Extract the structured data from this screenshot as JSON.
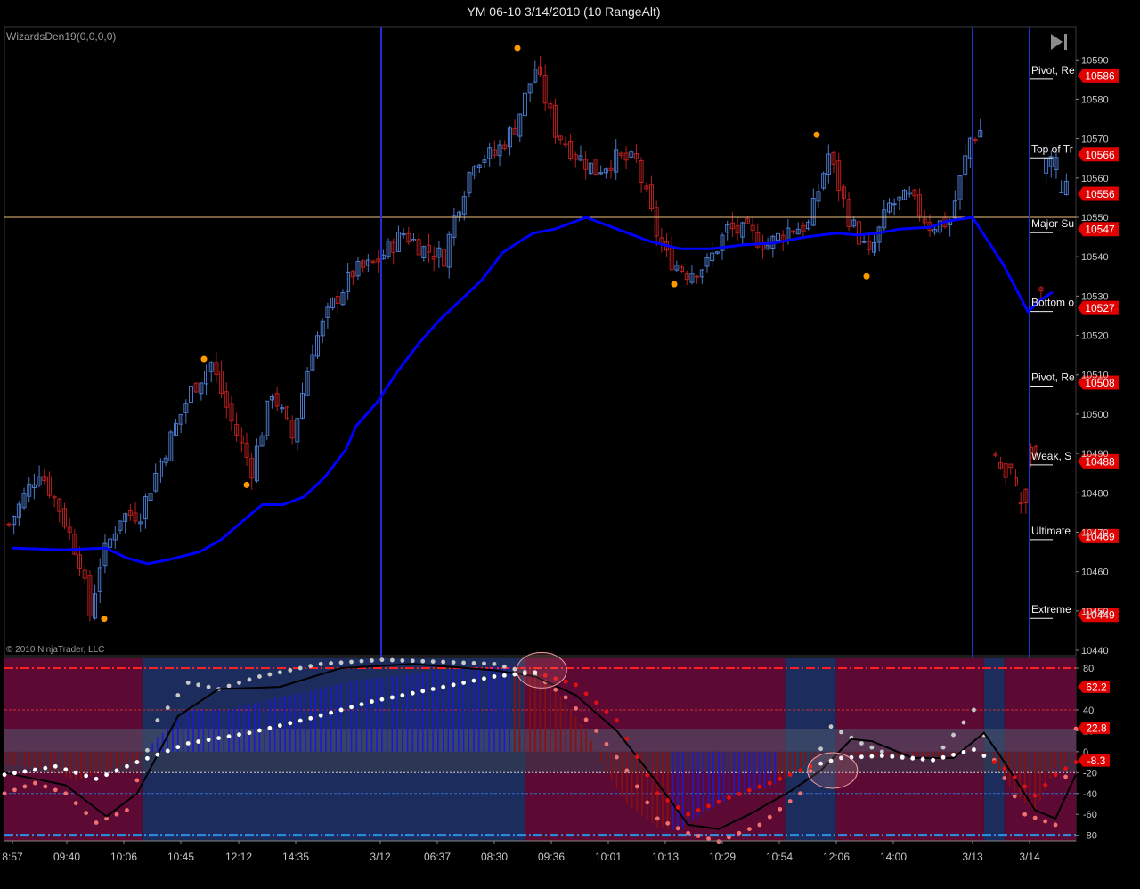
{
  "window": {
    "title": "YM 06-10  3/14/2010 (10 RangeAlt)",
    "indicator_label": "WizardsDen19(0,0,0,0)",
    "copyright": "© 2010 NinjaTrader, LLC"
  },
  "colors": {
    "background": "#000000",
    "up_candle": "#4a78c8",
    "down_candle": "#b81e1e",
    "moving_average": "#0000ff",
    "session_line": "#2030d0",
    "major_line": "#f0c080",
    "level_tag": "#e00000",
    "marker": "#ff9900",
    "osc_bull_zone": "#1c2c5c",
    "osc_bear_zone": "#5c0a34",
    "osc_neutral_band": "#505a6e"
  },
  "chart_data": [
    {
      "type": "candlestick",
      "name": "price",
      "y_ticks": [
        10590,
        10580,
        10570,
        10560,
        10550,
        10540,
        10530,
        10520,
        10510,
        10500,
        10490,
        10480,
        10470,
        10460,
        10450,
        10440
      ],
      "ylim": [
        10440,
        10593
      ],
      "x_ticks": [
        "8:57",
        "09:40",
        "10:06",
        "10:45",
        "12:12",
        "14:35",
        "3/12",
        "06:37",
        "08:30",
        "09:36",
        "10:01",
        "10:13",
        "10:29",
        "10:54",
        "12:06",
        "14:00",
        "3/13",
        "3/14"
      ],
      "levels": [
        {
          "label": "Pivot, Re",
          "value": 10586
        },
        {
          "label": "Top of Tr",
          "value": 10566
        },
        {
          "label": "",
          "value": 10556
        },
        {
          "label": "Major Su",
          "value": 10547
        },
        {
          "label": "Bottom o",
          "value": 10527
        },
        {
          "label": "Pivot, Re",
          "value": 10508
        },
        {
          "label": "Weak, S",
          "value": 10488
        },
        {
          "label": "Ultimate",
          "value": 10469
        },
        {
          "label": "Extreme",
          "value": 10449
        }
      ],
      "major_line_value": 10550,
      "moving_average": [
        [
          0,
          10466
        ],
        [
          10,
          10465.5
        ],
        [
          18,
          10466
        ],
        [
          22,
          10463.5
        ],
        [
          26,
          10462
        ],
        [
          30,
          10463
        ],
        [
          36,
          10465
        ],
        [
          40,
          10468
        ],
        [
          44,
          10472.5
        ],
        [
          48,
          10477
        ],
        [
          52,
          10477
        ],
        [
          56,
          10479
        ],
        [
          60,
          10484
        ],
        [
          64,
          10491
        ],
        [
          66,
          10497
        ],
        [
          70,
          10503
        ],
        [
          74,
          10511
        ],
        [
          78,
          10518
        ],
        [
          82,
          10524
        ],
        [
          86,
          10529
        ],
        [
          90,
          10534
        ],
        [
          94,
          10541
        ],
        [
          98,
          10544.5
        ],
        [
          100,
          10546
        ],
        [
          104,
          10547
        ],
        [
          110,
          10550
        ],
        [
          114,
          10548
        ],
        [
          118,
          10546
        ],
        [
          122,
          10544
        ],
        [
          128,
          10542
        ],
        [
          134,
          10542
        ],
        [
          140,
          10543
        ],
        [
          146,
          10543.5
        ],
        [
          152,
          10545
        ],
        [
          158,
          10546
        ],
        [
          162,
          10545.5
        ],
        [
          166,
          10546
        ],
        [
          170,
          10547
        ],
        [
          176,
          10547.5
        ],
        [
          179,
          10549
        ],
        [
          184,
          10550
        ]
      ],
      "moving_average_after_gap": [
        [
          0,
          10550
        ],
        [
          5,
          10538
        ],
        [
          9,
          10526
        ],
        [
          11,
          10529
        ],
        [
          13,
          10531
        ]
      ],
      "swing_markers": [
        {
          "bar": 0,
          "value": 10448
        },
        {
          "bar": 40,
          "value": 10514
        },
        {
          "bar": 48,
          "value": 10482
        },
        {
          "bar": 104,
          "value": 10593
        },
        {
          "bar": 134,
          "value": 10533
        },
        {
          "bar": 162,
          "value": 10571
        },
        {
          "bar": 171,
          "value": 10535
        }
      ],
      "sessions": [
        {
          "start_value": 10470,
          "ohlc_key": [
            [
              10470,
              10478,
              10466,
              10474
            ],
            [
              10474,
              10478,
              10468,
              10470
            ]
          ]
        }
      ]
    },
    {
      "type": "oscillator",
      "name": "WizardsDen19",
      "ylim": [
        -82,
        86
      ],
      "y_ticks": [
        80,
        60,
        40,
        20,
        0,
        -20,
        -40,
        -60,
        -80
      ],
      "value_tags": [
        62.2,
        22.8,
        -8.3
      ],
      "overbought": 80,
      "oversold": -80,
      "zones": [
        {
          "from_bar": 0,
          "to_bar": 27,
          "state": "bear"
        },
        {
          "from_bar": 27,
          "to_bar": 102,
          "state": "bull"
        },
        {
          "from_bar": 102,
          "to_bar": 153,
          "state": "bear"
        },
        {
          "from_bar": 153,
          "to_bar": 163,
          "state": "bull"
        },
        {
          "from_bar": 163,
          "to_bar": 192,
          "state": "bear"
        },
        {
          "from_bar": 192,
          "to_bar": 196,
          "state": "bull"
        },
        {
          "from_bar": 196,
          "to_bar": 210,
          "state": "bear"
        }
      ],
      "histogram_keys": [
        [
          0,
          -12
        ],
        [
          8,
          -16
        ],
        [
          14,
          -28
        ],
        [
          20,
          -18
        ],
        [
          26,
          -8
        ],
        [
          30,
          14
        ],
        [
          36,
          40
        ],
        [
          44,
          40
        ],
        [
          52,
          50
        ],
        [
          60,
          58
        ],
        [
          68,
          68
        ],
        [
          76,
          72
        ],
        [
          84,
          78
        ],
        [
          92,
          80
        ],
        [
          100,
          82
        ],
        [
          104,
          78
        ],
        [
          108,
          60
        ],
        [
          114,
          20
        ],
        [
          118,
          -20
        ],
        [
          122,
          -50
        ],
        [
          128,
          -72
        ],
        [
          132,
          -76
        ],
        [
          138,
          -56
        ],
        [
          144,
          -40
        ],
        [
          150,
          -34
        ],
        [
          156,
          -16
        ],
        [
          160,
          -4
        ],
        [
          164,
          0
        ],
        [
          168,
          -6
        ],
        [
          176,
          -4
        ],
        [
          184,
          -8
        ],
        [
          190,
          4
        ],
        [
          194,
          -10
        ],
        [
          198,
          -40
        ],
        [
          202,
          -58
        ],
        [
          206,
          -16
        ],
        [
          210,
          -8
        ]
      ],
      "white_dot_line": [
        [
          0,
          -22
        ],
        [
          10,
          -14
        ],
        [
          18,
          -26
        ],
        [
          26,
          -10
        ],
        [
          36,
          8
        ],
        [
          48,
          18
        ],
        [
          60,
          32
        ],
        [
          72,
          48
        ],
        [
          84,
          60
        ],
        [
          96,
          72
        ],
        [
          104,
          76
        ],
        [
          112,
          64
        ],
        [
          120,
          30
        ],
        [
          128,
          -40
        ],
        [
          134,
          -60
        ],
        [
          142,
          -44
        ],
        [
          150,
          -30
        ],
        [
          158,
          -14
        ],
        [
          164,
          -6
        ],
        [
          172,
          -4
        ],
        [
          182,
          -8
        ],
        [
          190,
          2
        ],
        [
          196,
          -16
        ],
        [
          202,
          -42
        ],
        [
          206,
          -22
        ],
        [
          210,
          -10
        ]
      ],
      "black_line": [
        [
          0,
          -20
        ],
        [
          6,
          -26
        ],
        [
          12,
          -32
        ],
        [
          20,
          -62
        ],
        [
          26,
          -40
        ],
        [
          34,
          34
        ],
        [
          42,
          60
        ],
        [
          54,
          62
        ],
        [
          66,
          80
        ],
        [
          80,
          84
        ],
        [
          96,
          78
        ],
        [
          104,
          72
        ],
        [
          112,
          54
        ],
        [
          120,
          20
        ],
        [
          128,
          -30
        ],
        [
          134,
          -70
        ],
        [
          140,
          -74
        ],
        [
          146,
          -60
        ],
        [
          154,
          -38
        ],
        [
          160,
          -18
        ],
        [
          166,
          12
        ],
        [
          170,
          10
        ],
        [
          178,
          -6
        ],
        [
          186,
          -6
        ],
        [
          192,
          18
        ],
        [
          196,
          -10
        ],
        [
          202,
          -56
        ],
        [
          206,
          -64
        ],
        [
          210,
          -22
        ]
      ],
      "gray_dot_line": [
        [
          0,
          -40
        ],
        [
          6,
          -30
        ],
        [
          12,
          -40
        ],
        [
          18,
          -68
        ],
        [
          24,
          -56
        ],
        [
          30,
          30
        ],
        [
          36,
          66
        ],
        [
          42,
          60
        ],
        [
          50,
          72
        ],
        [
          62,
          84
        ],
        [
          74,
          88
        ],
        [
          86,
          86
        ],
        [
          96,
          84
        ],
        [
          104,
          74
        ],
        [
          110,
          52
        ],
        [
          116,
          20
        ],
        [
          122,
          -18
        ],
        [
          128,
          -64
        ],
        [
          134,
          -78
        ],
        [
          140,
          -86
        ],
        [
          148,
          -70
        ],
        [
          156,
          -40
        ],
        [
          162,
          24
        ],
        [
          168,
          8
        ],
        [
          174,
          -4
        ],
        [
          182,
          -8
        ],
        [
          190,
          40
        ],
        [
          194,
          -8
        ],
        [
          200,
          -60
        ],
        [
          206,
          -70
        ],
        [
          210,
          22
        ]
      ],
      "circle_annotations": [
        {
          "bar": 106,
          "value": 78
        },
        {
          "bar": 163,
          "value": -18
        }
      ]
    }
  ]
}
